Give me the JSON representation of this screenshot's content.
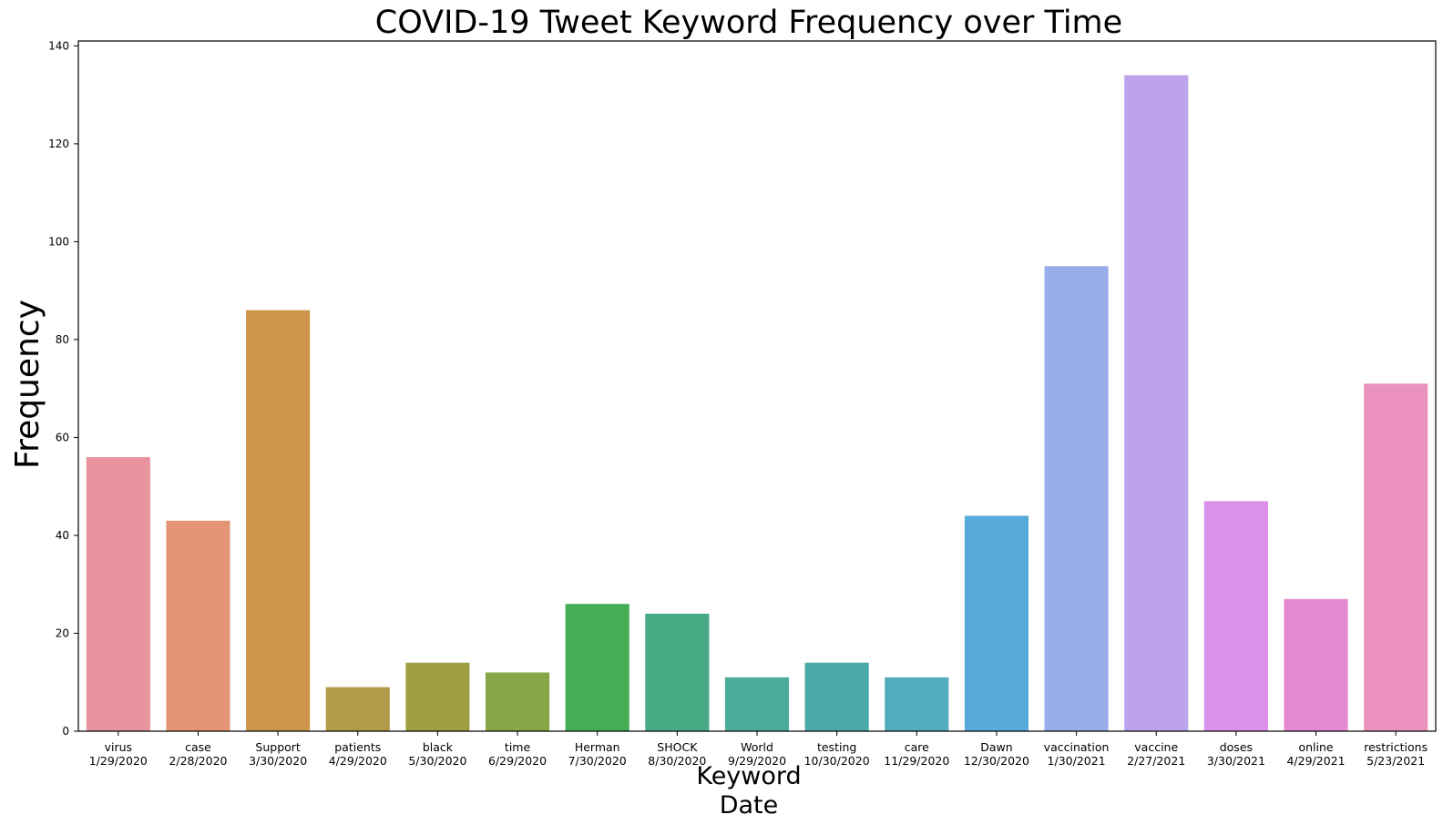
{
  "chart_data": {
    "type": "bar",
    "title": "COVID-19 Tweet Keyword Frequency over Time",
    "xlabel": "Keyword\nDate",
    "ylabel": "Frequency",
    "ylim": [
      0,
      141
    ],
    "yticks": [
      0,
      20,
      40,
      60,
      80,
      100,
      120,
      140
    ],
    "grid": false,
    "categories": [
      {
        "keyword": "virus",
        "date": "1/29/2020"
      },
      {
        "keyword": "case",
        "date": "2/28/2020"
      },
      {
        "keyword": "Support",
        "date": "3/30/2020"
      },
      {
        "keyword": "patients",
        "date": "4/29/2020"
      },
      {
        "keyword": "black",
        "date": "5/30/2020"
      },
      {
        "keyword": "time",
        "date": "6/29/2020"
      },
      {
        "keyword": "Herman",
        "date": "7/30/2020"
      },
      {
        "keyword": "SHOCK",
        "date": "8/30/2020"
      },
      {
        "keyword": "World",
        "date": "9/29/2020"
      },
      {
        "keyword": "testing",
        "date": "10/30/2020"
      },
      {
        "keyword": "care",
        "date": "11/29/2020"
      },
      {
        "keyword": "Dawn",
        "date": "12/30/2020"
      },
      {
        "keyword": "vaccination",
        "date": "1/30/2021"
      },
      {
        "keyword": "vaccine",
        "date": "2/27/2021"
      },
      {
        "keyword": "doses",
        "date": "3/30/2021"
      },
      {
        "keyword": "online",
        "date": "4/29/2021"
      },
      {
        "keyword": "restrictions",
        "date": "5/23/2021"
      }
    ],
    "values": [
      56,
      43,
      86,
      9,
      14,
      12,
      26,
      24,
      11,
      14,
      11,
      44,
      95,
      134,
      47,
      27,
      71
    ],
    "colors": [
      "#e8949f",
      "#e59576",
      "#cd964b",
      "#b29a49",
      "#9ea043",
      "#86a746",
      "#45ae55",
      "#48aa84",
      "#4aad9b",
      "#4aaaa9",
      "#52acbe",
      "#57aad9",
      "#99adea",
      "#bda3ea",
      "#d991e9",
      "#e58ad2",
      "#ea92bd"
    ]
  }
}
